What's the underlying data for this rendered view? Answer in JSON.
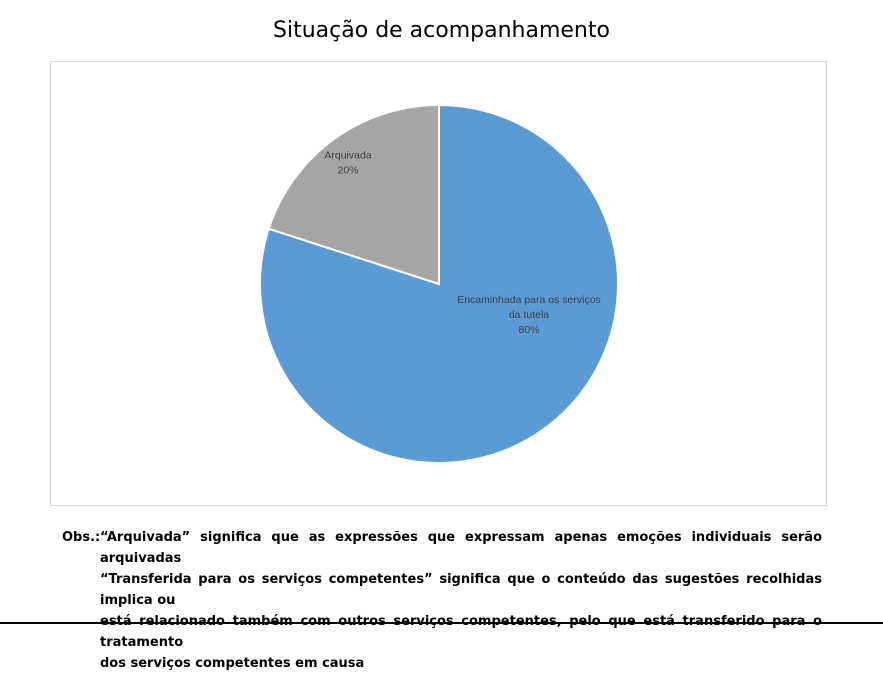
{
  "chart_data": {
    "type": "pie",
    "title": "Situação de acompanhamento",
    "slices": [
      {
        "label": "Encaminhada para os serviços da tutela",
        "label_lines": [
          "Encaminhada para os serviços",
          "da tutela"
        ],
        "value": 80,
        "value_label": "80%",
        "color": "#5b9bd5"
      },
      {
        "label": "Arquivada",
        "label_lines": [
          "Arquivada"
        ],
        "value": 20,
        "value_label": "20%",
        "color": "#a5a5a5"
      }
    ],
    "legend": "none",
    "data_labels": "inside"
  },
  "note": {
    "prefix": "Obs.:",
    "lines": [
      "“Arquivada” significa que as expressões que expressam apenas emoções individuais serão arquivadas",
      "“Transferida para os serviços competentes” significa que o conteúdo das sugestões recolhidas implica ou",
      "está relacionado também com outros serviços competentes, pelo que está transferido para o tratamento",
      "dos serviços competentes em causa"
    ]
  }
}
